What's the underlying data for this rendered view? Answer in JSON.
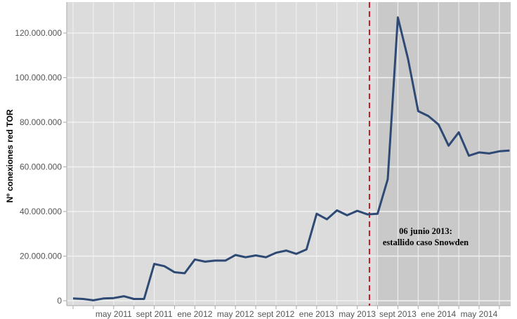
{
  "chart_data": {
    "type": "line",
    "title": "",
    "xlabel": "",
    "ylabel": "Nº conexiones red TOR",
    "ylim": [
      0,
      130000000
    ],
    "yticks": [
      0,
      20000000,
      40000000,
      60000000,
      80000000,
      100000000,
      120000000
    ],
    "ytick_labels": [
      "0",
      "20.000.000",
      "40.000.000",
      "60.000.000",
      "80.000.000",
      "100.000.000",
      "120.000.000"
    ],
    "x_start": "2011-01",
    "xtick_labels": [
      "may 2011",
      "sept 2011",
      "ene 2012",
      "may 2012",
      "sept 2012",
      "ene 2013",
      "may 2013",
      "sept 2013",
      "ene 2014",
      "may 2014"
    ],
    "xtick_month_index": [
      4,
      8,
      12,
      16,
      20,
      24,
      28,
      32,
      36,
      40
    ],
    "series": [
      {
        "name": "Nº conexiones red TOR",
        "color": "#2e4a74",
        "values": [
          1000000,
          800000,
          200000,
          1000000,
          1200000,
          2000000,
          800000,
          800000,
          16500000,
          15500000,
          12800000,
          12300000,
          18500000,
          17500000,
          18000000,
          18000000,
          20500000,
          19500000,
          20300000,
          19500000,
          21500000,
          22500000,
          21000000,
          23000000,
          39000000,
          36500000,
          40500000,
          38300000,
          40300000,
          38700000,
          39000000,
          54500000,
          127000000,
          108500000,
          85000000,
          82800000,
          79000000,
          69500000,
          75500000,
          65000000,
          66500000,
          66000000,
          67000000,
          67300000
        ]
      }
    ],
    "event": {
      "month_index": 29.2,
      "color": "#c0182a",
      "annotation": [
        "06 junio 2013:",
        "estallido caso Snowden"
      ]
    },
    "grid": true,
    "legend": "none"
  }
}
